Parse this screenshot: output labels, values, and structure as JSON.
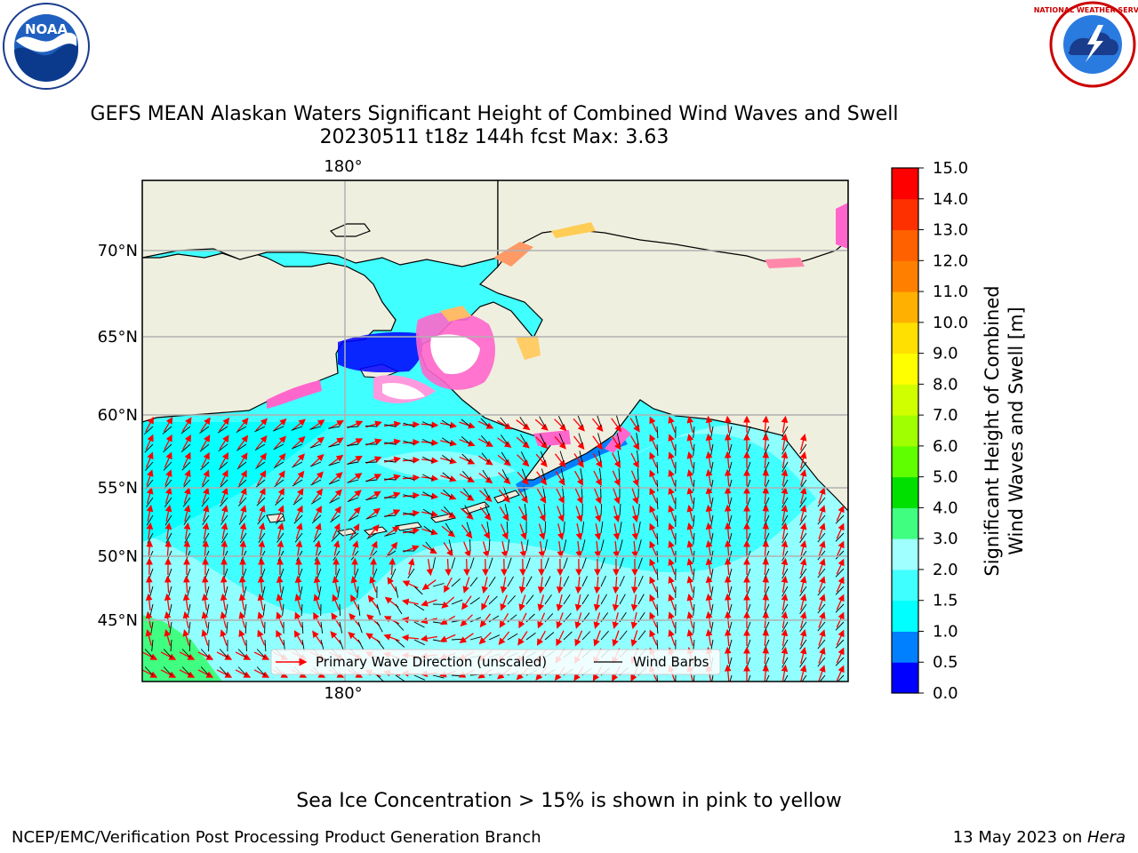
{
  "logos": {
    "left": "NOAA",
    "right": "NATIONAL WEATHER SERVICE"
  },
  "title": {
    "line1": "GEFS MEAN Alaskan Waters Significant Height of Combined Wind Waves and Swell",
    "line2": "20230511 t18z 144h fcst   Max: 3.63"
  },
  "note": "Sea Ice Concentration > 15% is shown in pink to yellow",
  "footer": {
    "left": "NCEP/EMC/Verification Post Processing Product Generation Branch",
    "right_text": "13 May 2023 on ",
    "right_italic": "Hera"
  },
  "chart_data": {
    "type": "heatmap",
    "map": "Alaskan waters (Bering Sea, Gulf of Alaska, North Pacific)",
    "x_tick_labels": [
      "180°"
    ],
    "y_ticks": [
      {
        "lat": 70,
        "label": "70°N"
      },
      {
        "lat": 65,
        "label": "65°N"
      },
      {
        "lat": 60,
        "label": "60°N"
      },
      {
        "lat": 55,
        "label": "55°N"
      },
      {
        "lat": 50,
        "label": "50°N"
      },
      {
        "lat": 45,
        "label": "45°N"
      }
    ],
    "grid": true,
    "max_value": 3.63,
    "colorbar": {
      "label": "Significant Height of Combined\nWind Waves and Swell [m]",
      "label_lines": [
        "Significant Height of Combined",
        "Wind Waves and Swell [m]"
      ],
      "ticks": [
        "0.0",
        "0.5",
        "1.0",
        "1.5",
        "2.0",
        "3.0",
        "4.0",
        "5.0",
        "6.0",
        "7.0",
        "8.0",
        "9.0",
        "10.0",
        "11.0",
        "12.0",
        "13.0",
        "14.0",
        "15.0"
      ],
      "colors": [
        "#0000ff",
        "#0080ff",
        "#00ffff",
        "#40ffff",
        "#a0ffff",
        "#40ff80",
        "#00e000",
        "#60ff00",
        "#a0ff00",
        "#d0ff00",
        "#ffff00",
        "#ffe000",
        "#ffb000",
        "#ff8000",
        "#ff6000",
        "#ff3000",
        "#ff0000"
      ]
    },
    "legend": {
      "placement": "bottom-center",
      "entries": [
        {
          "label": "Primary Wave Direction (unscaled)",
          "color": "#ff0000"
        },
        {
          "label": "Wind Barbs",
          "color": "#000000"
        }
      ]
    },
    "wave_height_regions": [
      {
        "region": "Bering Sea / Gulf of Alaska / North Pacific (most of ocean)",
        "range_m": "1.5-2.0"
      },
      {
        "region": "Central North Pacific band and eastern Pacific",
        "range_m": "2.0-3.0"
      },
      {
        "region": "Coastal Bering Sea near ice edge",
        "range_m": "0.5-1.5"
      },
      {
        "region": "Southwest corner",
        "range_m": "3.0-4.0"
      }
    ],
    "sea_ice": "Norton Sound, Bering Strait and Chukchi coast (shown in pink to yellow)"
  }
}
